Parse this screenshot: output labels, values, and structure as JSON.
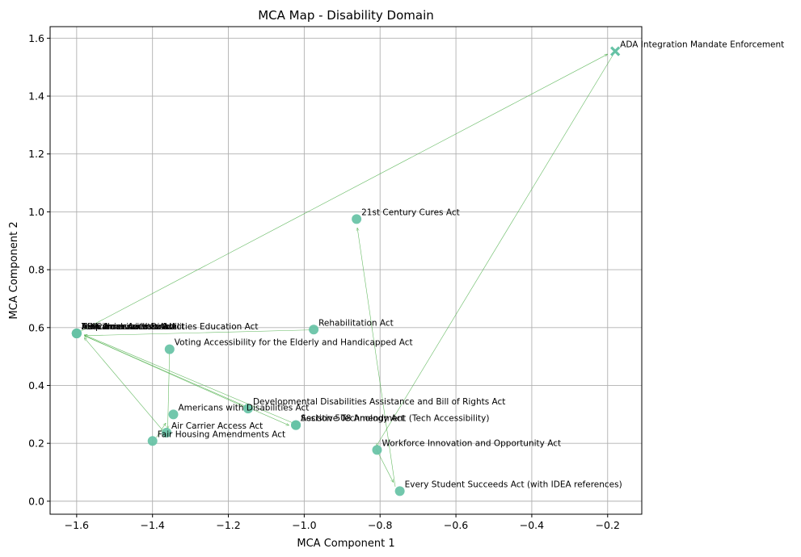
{
  "chart_data": {
    "type": "scatter",
    "title": "MCA Map - Disability Domain",
    "xlabel": "MCA Component 1",
    "ylabel": "MCA Component 2",
    "xlim": [
      -1.67,
      -0.11
    ],
    "ylim": [
      -0.045,
      1.64
    ],
    "xticks": [
      -1.6,
      -1.4,
      -1.2,
      -1.0,
      -0.8,
      -0.6,
      -0.4,
      -0.2
    ],
    "xtick_labels": [
      "−1.6",
      "−1.4",
      "−1.2",
      "−1.0",
      "−0.8",
      "−0.6",
      "−0.4",
      "−0.2"
    ],
    "yticks": [
      0.0,
      0.2,
      0.4,
      0.6,
      0.8,
      1.0,
      1.2,
      1.4,
      1.6
    ],
    "ytick_labels": [
      "0.0",
      "0.2",
      "0.4",
      "0.6",
      "0.8",
      "1.0",
      "1.2",
      "1.4",
      "1.6"
    ],
    "grid": true,
    "point_color": "#66c2a5",
    "arrow_color": "#4daf4a",
    "points": [
      {
        "label": "ADA Integration Mandate Enforcement",
        "x": -0.18,
        "y": 1.555,
        "marker": "x"
      },
      {
        "label": "21st Century Cures Act",
        "x": -0.862,
        "y": 0.975,
        "marker": "o"
      },
      {
        "label": "Telecommunications Act",
        "x": -1.6,
        "y": 0.58,
        "marker": "o"
      },
      {
        "label": "Air Carrier Access Act",
        "x": -1.6,
        "y": 0.58,
        "marker": "o"
      },
      {
        "label": "Individuals with Disabilities Education Act",
        "x": -1.6,
        "y": 0.58,
        "marker": "o"
      },
      {
        "label": "Help America Vote Act",
        "x": -1.6,
        "y": 0.58,
        "marker": "o"
      },
      {
        "label": "ADA Amendments Act",
        "x": -1.6,
        "y": 0.58,
        "marker": "o"
      },
      {
        "label": "Rehabilitation Act",
        "x": -0.975,
        "y": 0.593,
        "marker": "o"
      },
      {
        "label": "Voting Accessibility for the Elderly and Handicapped Act",
        "x": -1.355,
        "y": 0.525,
        "marker": "o"
      },
      {
        "label": "Developmental Disabilities Assistance and Bill of Rights Act",
        "x": -1.148,
        "y": 0.32,
        "marker": "o"
      },
      {
        "label": "Americans with Disabilities Act",
        "x": -1.345,
        "y": 0.3,
        "marker": "o"
      },
      {
        "label": "Section 508 Amendment (Tech Accessibility)",
        "x": -1.022,
        "y": 0.263,
        "marker": "o"
      },
      {
        "label": "Assistive Technology Act",
        "x": -1.022,
        "y": 0.263,
        "marker": "o"
      },
      {
        "label": "Air Carrier Access Act",
        "x": -1.363,
        "y": 0.237,
        "marker": "o"
      },
      {
        "label": "Fair Housing Amendments Act",
        "x": -1.4,
        "y": 0.208,
        "marker": "o"
      },
      {
        "label": "Workforce Innovation and Opportunity Act",
        "x": -0.808,
        "y": 0.177,
        "marker": "o"
      },
      {
        "label": "Every Student Succeeds Act (with IDEA references)",
        "x": -0.748,
        "y": 0.035,
        "marker": "o"
      }
    ],
    "arrows": [
      {
        "from": [
          -1.6,
          0.58
        ],
        "to": [
          -0.2,
          1.545
        ]
      },
      {
        "from": [
          -0.18,
          1.555
        ],
        "to": [
          -0.81,
          0.19
        ]
      },
      {
        "from": [
          -0.76,
          0.05
        ],
        "to": [
          -0.86,
          0.945
        ]
      },
      {
        "from": [
          -0.81,
          0.18
        ],
        "to": [
          -0.765,
          0.065
        ]
      },
      {
        "from": [
          -0.98,
          0.592
        ],
        "to": [
          -1.58,
          0.572
        ]
      },
      {
        "from": [
          -1.148,
          0.32
        ],
        "to": [
          -1.58,
          0.572
        ]
      },
      {
        "from": [
          -1.58,
          0.572
        ],
        "to": [
          -1.04,
          0.262
        ]
      },
      {
        "from": [
          -1.02,
          0.265
        ],
        "to": [
          -1.58,
          0.575
        ]
      },
      {
        "from": [
          -1.355,
          0.52
        ],
        "to": [
          -1.36,
          0.25
        ]
      },
      {
        "from": [
          -1.37,
          0.24
        ],
        "to": [
          -1.58,
          0.565
        ]
      },
      {
        "from": [
          -1.39,
          0.22
        ],
        "to": [
          -1.365,
          0.27
        ]
      }
    ]
  }
}
